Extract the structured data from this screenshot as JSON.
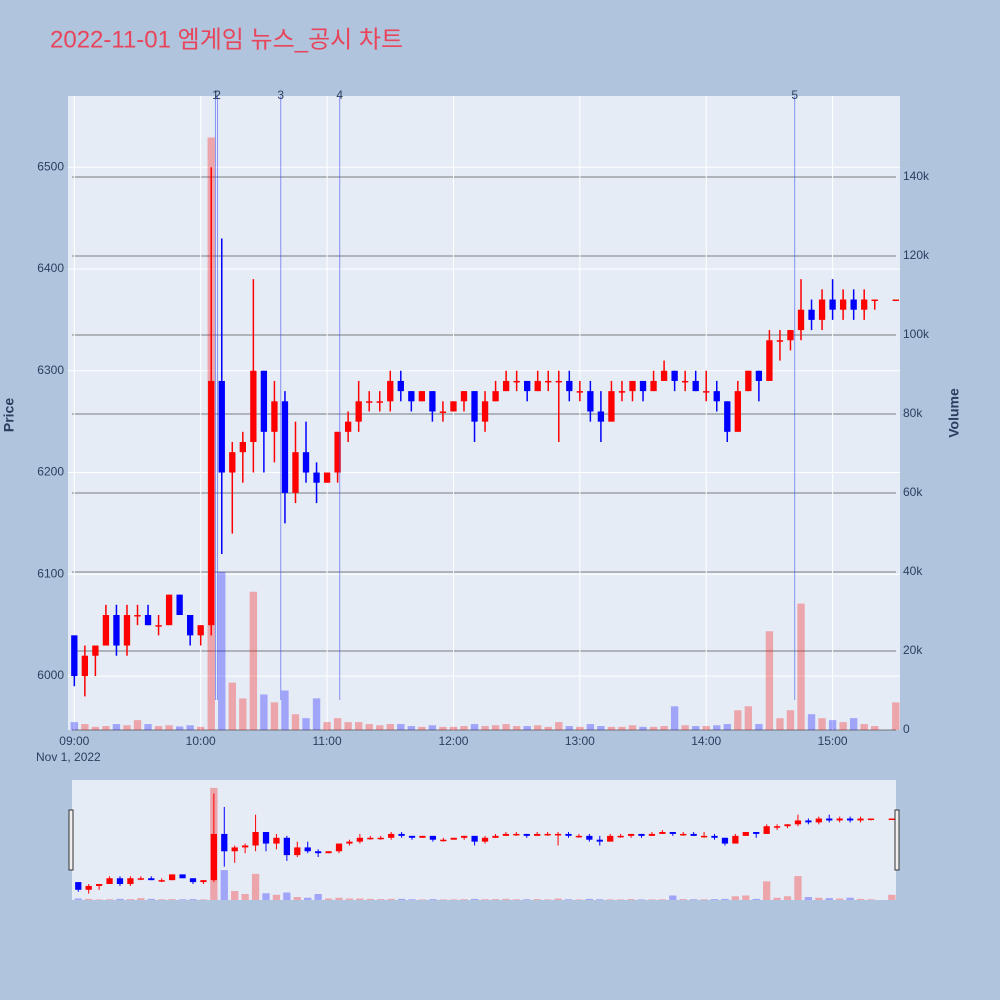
{
  "chart_data": {
    "type": "candlestick",
    "title": "2022-11-01 엠게임 뉴스_공시 차트",
    "y_label": "Price",
    "y2_label": "Volume",
    "date_label": "Nov 1, 2022",
    "increasing_color": "#ff0000",
    "decreasing_color": "#0000ff",
    "x": [
      "09:00",
      "09:05",
      "09:10",
      "09:15",
      "09:20",
      "09:25",
      "09:30",
      "09:35",
      "09:40",
      "09:45",
      "09:50",
      "09:55",
      "10:00",
      "10:05",
      "10:10",
      "10:15",
      "10:20",
      "10:25",
      "10:30",
      "10:35",
      "10:40",
      "10:45",
      "10:50",
      "10:55",
      "11:00",
      "11:05",
      "11:10",
      "11:15",
      "11:20",
      "11:25",
      "11:30",
      "11:35",
      "11:40",
      "11:45",
      "11:50",
      "11:55",
      "12:00",
      "12:05",
      "12:10",
      "12:15",
      "12:20",
      "12:25",
      "12:30",
      "12:35",
      "12:40",
      "12:45",
      "12:50",
      "12:55",
      "13:00",
      "13:05",
      "13:10",
      "13:15",
      "13:20",
      "13:25",
      "13:30",
      "13:35",
      "13:40",
      "13:45",
      "13:50",
      "13:55",
      "14:00",
      "14:05",
      "14:10",
      "14:15",
      "14:20",
      "14:25",
      "14:30",
      "14:35",
      "14:40",
      "14:45",
      "14:50",
      "14:55",
      "15:00",
      "15:05",
      "15:10",
      "15:15",
      "15:20",
      "15:30"
    ],
    "open": [
      6040,
      6000,
      6020,
      6030,
      6060,
      6030,
      6060,
      6060,
      6050,
      6050,
      6080,
      6060,
      6040,
      6050,
      6290,
      6200,
      6220,
      6230,
      6300,
      6240,
      6270,
      6180,
      6220,
      6200,
      6190,
      6200,
      6240,
      6250,
      6270,
      6270,
      6270,
      6290,
      6280,
      6270,
      6280,
      6260,
      6260,
      6270,
      6280,
      6250,
      6270,
      6280,
      6290,
      6290,
      6280,
      6290,
      6290,
      6290,
      6280,
      6280,
      6260,
      6250,
      6280,
      6280,
      6290,
      6280,
      6290,
      6300,
      6290,
      6290,
      6280,
      6280,
      6270,
      6240,
      6280,
      6300,
      6290,
      6330,
      6330,
      6340,
      6360,
      6350,
      6370,
      6360,
      6370,
      6360,
      6370,
      6370
    ],
    "high": [
      6040,
      6030,
      6030,
      6070,
      6070,
      6070,
      6070,
      6070,
      6060,
      6080,
      6080,
      6060,
      6050,
      6500,
      6430,
      6230,
      6240,
      6390,
      6300,
      6290,
      6280,
      6250,
      6250,
      6210,
      6200,
      6240,
      6260,
      6290,
      6280,
      6280,
      6300,
      6300,
      6280,
      6280,
      6280,
      6270,
      6270,
      6280,
      6280,
      6280,
      6290,
      6300,
      6300,
      6290,
      6300,
      6300,
      6300,
      6300,
      6290,
      6290,
      6280,
      6290,
      6290,
      6290,
      6290,
      6300,
      6310,
      6300,
      6300,
      6300,
      6300,
      6290,
      6270,
      6290,
      6300,
      6300,
      6340,
      6340,
      6340,
      6390,
      6370,
      6380,
      6390,
      6380,
      6380,
      6380,
      6370,
      6370
    ],
    "low": [
      5990,
      5980,
      6000,
      6030,
      6020,
      6020,
      6050,
      6050,
      6040,
      6050,
      6060,
      6030,
      6030,
      6040,
      6120,
      6140,
      6190,
      6200,
      6200,
      6210,
      6150,
      6170,
      6190,
      6170,
      6190,
      6190,
      6230,
      6240,
      6260,
      6260,
      6260,
      6270,
      6260,
      6270,
      6250,
      6250,
      6260,
      6260,
      6230,
      6240,
      6270,
      6280,
      6280,
      6270,
      6280,
      6280,
      6230,
      6270,
      6270,
      6250,
      6230,
      6250,
      6270,
      6270,
      6270,
      6280,
      6290,
      6280,
      6280,
      6280,
      6270,
      6260,
      6230,
      6240,
      6280,
      6270,
      6290,
      6310,
      6320,
      6330,
      6340,
      6340,
      6350,
      6350,
      6350,
      6350,
      6360,
      6370
    ],
    "close": [
      6000,
      6020,
      6030,
      6060,
      6030,
      6060,
      6060,
      6050,
      6050,
      6080,
      6060,
      6040,
      6050,
      6290,
      6200,
      6220,
      6230,
      6300,
      6240,
      6270,
      6180,
      6220,
      6200,
      6190,
      6200,
      6240,
      6250,
      6270,
      6270,
      6270,
      6290,
      6280,
      6270,
      6280,
      6260,
      6260,
      6270,
      6280,
      6250,
      6270,
      6280,
      6290,
      6290,
      6280,
      6290,
      6290,
      6290,
      6280,
      6280,
      6260,
      6250,
      6280,
      6280,
      6290,
      6280,
      6290,
      6300,
      6290,
      6290,
      6280,
      6280,
      6270,
      6240,
      6280,
      6300,
      6290,
      6330,
      6330,
      6340,
      6360,
      6350,
      6370,
      6360,
      6370,
      6360,
      6370,
      6370,
      6370
    ],
    "volume": [
      2000,
      1500,
      800,
      1000,
      1500,
      1200,
      2500,
      1500,
      1000,
      1200,
      900,
      1200,
      800,
      150000,
      40000,
      12000,
      8000,
      35000,
      9000,
      7000,
      10000,
      4000,
      3000,
      8000,
      2000,
      3000,
      2000,
      2000,
      1500,
      1200,
      1500,
      1500,
      1000,
      800,
      1200,
      800,
      800,
      1000,
      1500,
      1000,
      1200,
      1500,
      1000,
      1000,
      1200,
      800,
      2000,
      1000,
      800,
      1500,
      1000,
      800,
      800,
      1200,
      800,
      800,
      1000,
      6000,
      1200,
      1000,
      1000,
      1200,
      1500,
      5000,
      6000,
      1500,
      25000,
      3000,
      5000,
      32000,
      4000,
      3000,
      2500,
      2000,
      3000,
      1500,
      1000,
      7000
    ],
    "xlim": [
      "08:57",
      "15:32"
    ],
    "xticks": [
      "09:00",
      "10:00",
      "11:00",
      "12:00",
      "13:00",
      "14:00",
      "15:00"
    ],
    "ylim": [
      5947,
      6570
    ],
    "yticks": [
      6000,
      6100,
      6200,
      6300,
      6400,
      6500
    ],
    "y2lim": [
      0,
      160500
    ],
    "y2ticks": [
      0,
      {
        "value": 20000,
        "label": "20k"
      },
      {
        "value": 40000,
        "label": "40k"
      },
      {
        "value": 60000,
        "label": "60k"
      },
      {
        "value": 80000,
        "label": "80k"
      },
      {
        "value": 100000,
        "label": "100k"
      },
      {
        "value": 120000,
        "label": "120k"
      },
      {
        "value": 140000,
        "label": "140k"
      }
    ],
    "events": [
      {
        "x": "10:07",
        "label": "1"
      },
      {
        "x": "10:08",
        "label": "2"
      },
      {
        "x": "10:38",
        "label": "3"
      },
      {
        "x": "11:06",
        "label": "4"
      },
      {
        "x": "14:42",
        "label": "5"
      }
    ],
    "grid": true
  }
}
